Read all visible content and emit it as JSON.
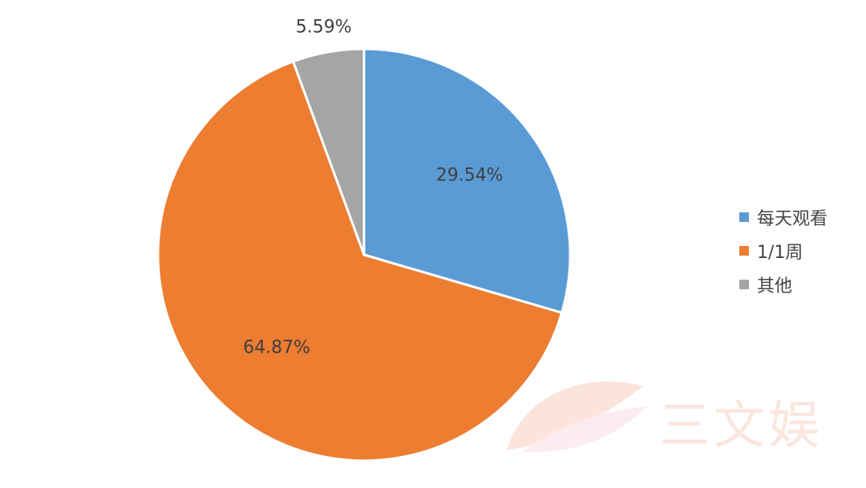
{
  "chart_data": {
    "type": "pie",
    "title": "",
    "categories": [
      "每天观看",
      "1/1周",
      "其他"
    ],
    "values": [
      29.54,
      64.87,
      5.59
    ],
    "labels": [
      "29.54%",
      "64.87%",
      "5.59%"
    ],
    "colors": [
      "#5B9BD5",
      "#ED7D31",
      "#A5A5A5"
    ],
    "start": "12 o'clock",
    "direction": "clockwise",
    "legend_position": "right"
  },
  "legend": {
    "items": [
      {
        "label": "每天观看",
        "color": "#5B9BD5"
      },
      {
        "label": "1/1周",
        "color": "#ED7D31"
      },
      {
        "label": "其他",
        "color": "#A5A5A5"
      }
    ]
  },
  "watermark": {
    "text": "三文娱"
  }
}
